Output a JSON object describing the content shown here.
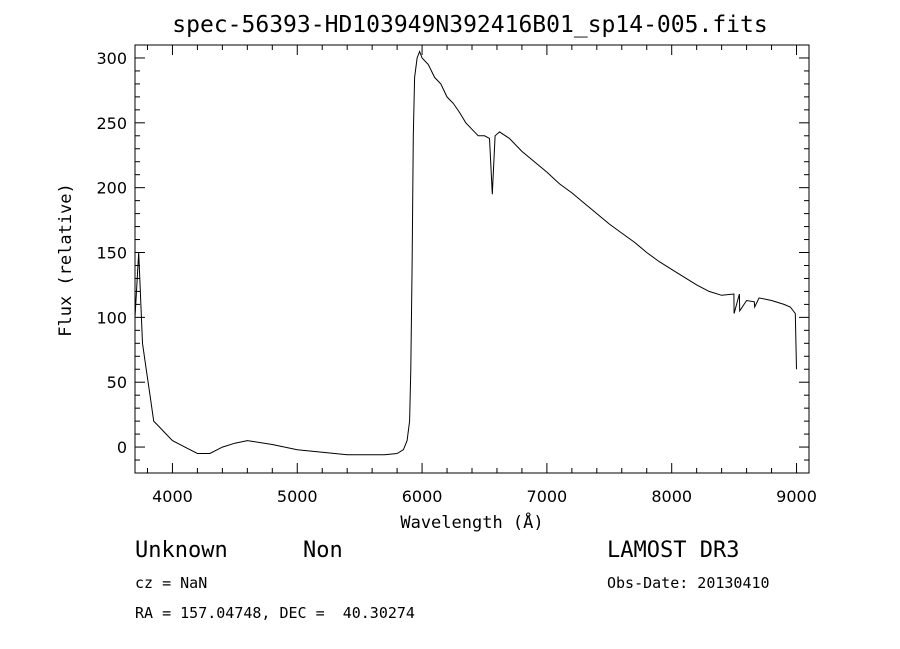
{
  "chart_data": {
    "type": "line",
    "title": "spec-56393-HD103949N392416B01_sp14-005.fits",
    "xlabel": "Wavelength (Å)",
    "ylabel": "Flux (relative)",
    "xlim": [
      3700,
      9100
    ],
    "ylim": [
      -20,
      310
    ],
    "xticks": [
      "4000",
      "5000",
      "6000",
      "7000",
      "8000",
      "9000"
    ],
    "yticks": [
      "0",
      "50",
      "100",
      "150",
      "200",
      "250",
      "300"
    ],
    "xtick_values": [
      4000,
      5000,
      6000,
      7000,
      8000,
      9000
    ],
    "ytick_values": [
      0,
      50,
      100,
      150,
      200,
      250,
      300
    ],
    "series": [
      {
        "x": [
          3700,
          3730,
          3760,
          3790,
          3820,
          3850,
          3900,
          3950,
          4000,
          4100,
          4200,
          4300,
          4400,
          4500,
          4600,
          4800,
          5000,
          5200,
          5400,
          5600,
          5700,
          5800,
          5850,
          5880,
          5900,
          5910,
          5920,
          5930,
          5940,
          5960,
          5980,
          6000,
          6050,
          6100,
          6150,
          6200,
          6250,
          6300,
          6350,
          6400,
          6450,
          6500,
          6540,
          6563,
          6585,
          6620,
          6700,
          6800,
          6900,
          7000,
          7100,
          7200,
          7300,
          7400,
          7500,
          7600,
          7700,
          7800,
          7900,
          8000,
          8100,
          8200,
          8300,
          8400,
          8498,
          8500,
          8542,
          8545,
          8600,
          8662,
          8665,
          8700,
          8800,
          8900,
          8950,
          8990,
          9000
        ],
        "y": [
          100,
          150,
          80,
          60,
          40,
          20,
          15,
          10,
          5,
          0,
          -5,
          -5,
          0,
          3,
          5,
          2,
          -2,
          -4,
          -6,
          -6,
          -6,
          -5,
          -2,
          5,
          20,
          60,
          140,
          240,
          285,
          300,
          305,
          300,
          295,
          285,
          280,
          270,
          265,
          258,
          250,
          245,
          240,
          240,
          238,
          195,
          240,
          243,
          238,
          228,
          220,
          212,
          203,
          196,
          188,
          180,
          172,
          165,
          158,
          150,
          143,
          137,
          131,
          125,
          120,
          117,
          118,
          103,
          118,
          105,
          113,
          112,
          108,
          115,
          113,
          110,
          108,
          103,
          60
        ]
      }
    ]
  },
  "info": {
    "object_class": "Unknown",
    "object_subclass": "Non",
    "cz": "cz = NaN",
    "coords": "RA = 157.04748, DEC =  40.30274",
    "survey": "LAMOST DR3",
    "obs_date": "Obs-Date: 20130410"
  }
}
